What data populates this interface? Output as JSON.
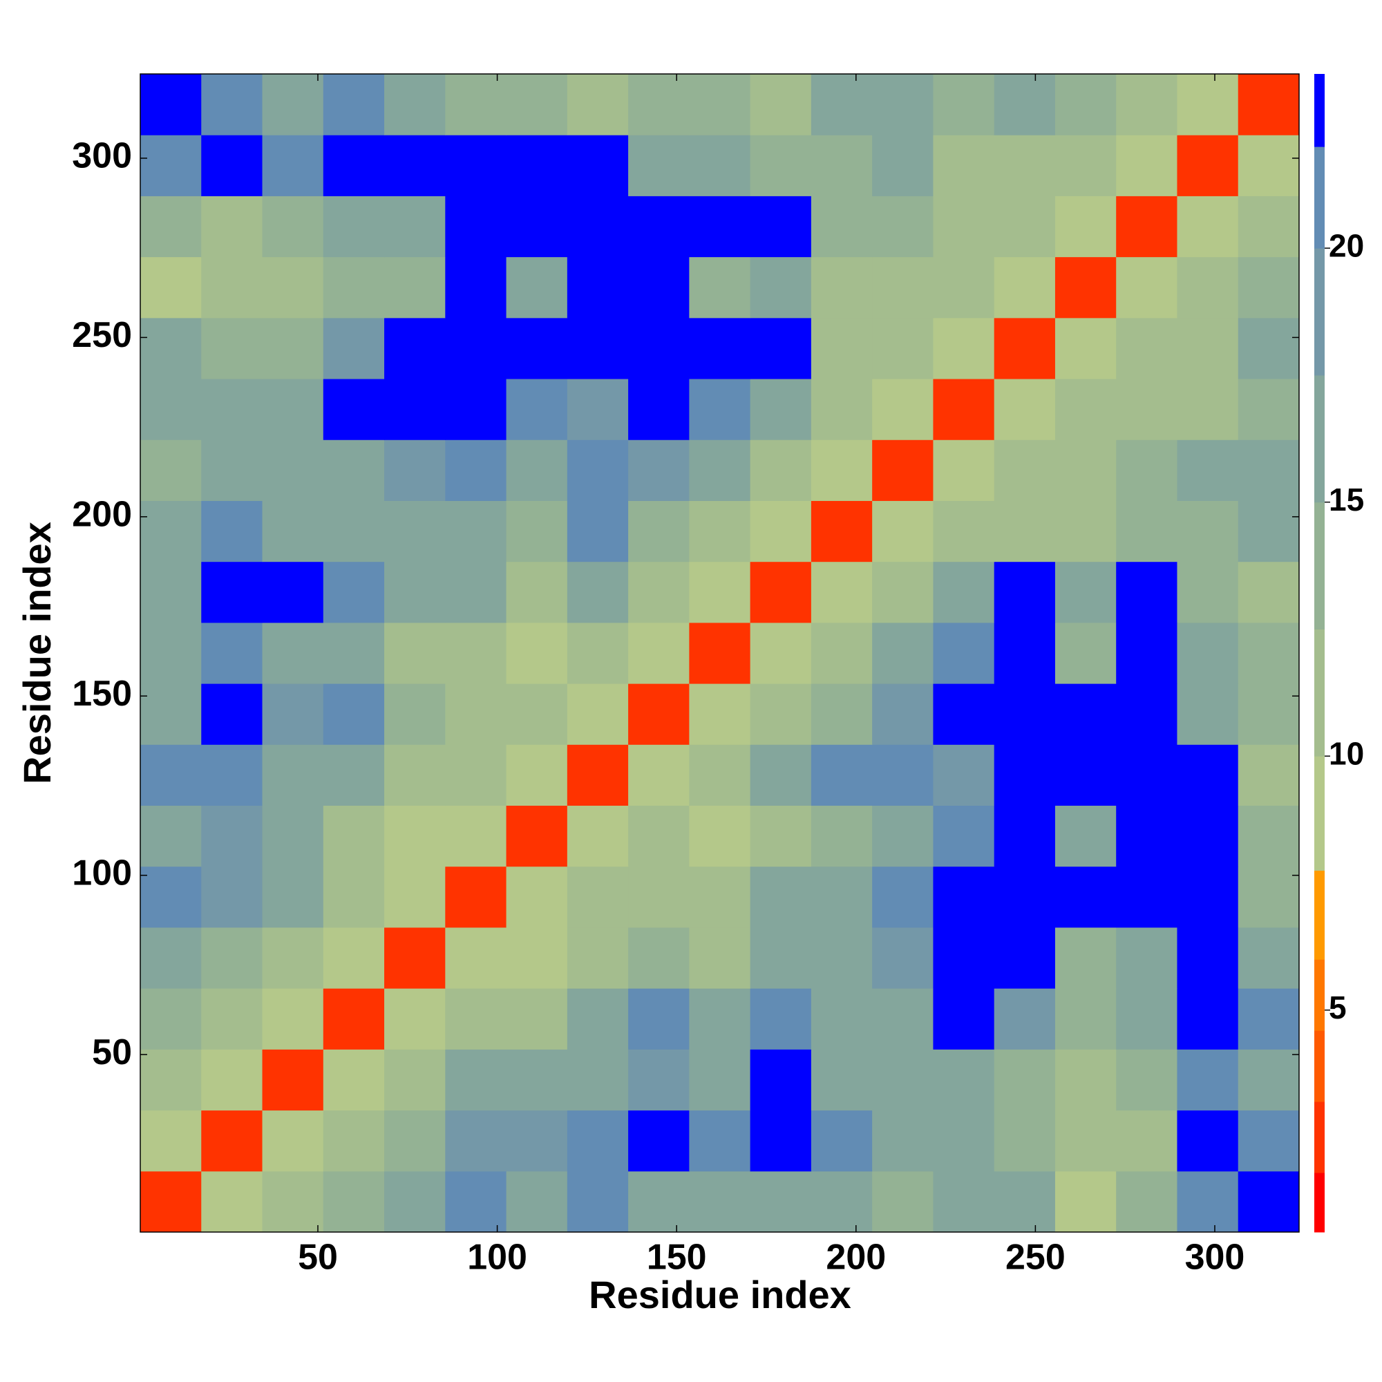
{
  "chart_data": {
    "type": "heatmap",
    "x_label": "Residue index",
    "y_label": "Residue index",
    "xlim": [
      0.5,
      323.5
    ],
    "ylim": [
      0.5,
      323.5
    ],
    "xticks": [
      50,
      100,
      150,
      200,
      250,
      300
    ],
    "yticks": [
      50,
      100,
      150,
      200,
      250,
      300
    ],
    "x_bins": [
      0.5,
      17.5,
      34.5,
      51.5,
      68.5,
      85.5,
      102.5,
      119.5,
      136.5,
      153.5,
      170.5,
      187.5,
      204.5,
      221.5,
      238.5,
      255.5,
      272.5,
      289.5,
      306.5,
      323.5
    ],
    "y_bins": [
      0.5,
      17.5,
      34.5,
      51.5,
      68.5,
      85.5,
      102.5,
      119.5,
      136.5,
      153.5,
      170.5,
      187.5,
      204.5,
      221.5,
      238.5,
      255.5,
      272.5,
      289.5,
      306.5,
      323.5
    ],
    "z": [
      [
        3,
        9,
        12,
        14,
        15,
        21,
        15,
        20,
        16,
        15,
        16,
        17,
        14,
        15,
        17,
        8,
        13,
        21,
        23
      ],
      [
        9,
        3,
        9,
        12,
        14,
        19,
        19,
        21,
        22,
        21,
        22,
        21,
        15,
        17,
        13,
        10,
        12,
        22,
        20
      ],
      [
        12,
        9,
        3,
        8,
        11,
        15,
        15,
        17,
        19,
        16,
        22,
        16,
        15,
        16,
        14,
        12,
        13,
        21,
        17
      ],
      [
        14,
        12,
        8,
        3,
        8,
        12,
        11,
        15,
        20,
        16,
        21,
        17,
        17,
        22,
        18,
        14,
        15,
        22,
        20
      ],
      [
        15,
        14,
        11,
        8,
        3,
        8,
        9,
        12,
        14,
        12,
        17,
        16,
        18,
        22,
        22,
        14,
        15,
        22,
        16
      ],
      [
        21,
        19,
        15,
        12,
        8,
        3,
        8,
        10,
        11,
        10,
        16,
        17,
        21,
        22,
        22,
        22,
        22,
        22,
        14
      ],
      [
        15,
        19,
        15,
        11,
        9,
        8,
        3,
        8,
        10,
        8,
        12,
        13,
        15,
        21,
        22,
        15,
        22,
        22,
        14
      ],
      [
        20,
        21,
        17,
        15,
        12,
        10,
        8,
        3,
        8,
        11,
        15,
        21,
        20,
        19,
        22,
        22,
        22,
        22,
        12
      ],
      [
        16,
        22,
        19,
        20,
        14,
        11,
        10,
        8,
        3,
        8,
        10,
        14,
        19,
        22,
        22,
        22,
        22,
        17,
        13
      ],
      [
        15,
        21,
        16,
        16,
        12,
        10,
        8,
        11,
        8,
        3,
        8,
        10,
        15,
        21,
        22,
        14,
        22,
        17,
        13
      ],
      [
        16,
        22,
        22,
        21,
        17,
        16,
        12,
        15,
        10,
        8,
        3,
        8,
        12,
        16,
        22,
        17,
        22,
        14,
        12
      ],
      [
        17,
        21,
        16,
        17,
        16,
        17,
        13,
        21,
        14,
        10,
        8,
        3,
        8,
        11,
        12,
        11,
        14,
        13,
        15
      ],
      [
        14,
        15,
        15,
        17,
        18,
        21,
        15,
        20,
        19,
        15,
        12,
        8,
        3,
        8,
        11,
        10,
        14,
        16,
        17
      ],
      [
        15,
        17,
        16,
        22,
        22,
        22,
        21,
        19,
        22,
        21,
        16,
        11,
        8,
        3,
        8,
        10,
        12,
        10,
        14
      ],
      [
        17,
        13,
        14,
        18,
        22,
        22,
        22,
        22,
        22,
        22,
        22,
        12,
        11,
        8,
        3,
        8,
        10,
        11,
        15
      ],
      [
        8,
        10,
        12,
        14,
        14,
        22,
        15,
        22,
        22,
        14,
        17,
        11,
        10,
        10,
        8,
        3,
        8,
        10,
        13
      ],
      [
        13,
        12,
        13,
        15,
        15,
        22,
        22,
        22,
        22,
        22,
        22,
        14,
        14,
        12,
        10,
        8,
        3,
        8,
        11
      ],
      [
        21,
        22,
        21,
        22,
        22,
        22,
        22,
        22,
        17,
        17,
        14,
        13,
        16,
        10,
        11,
        10,
        8,
        3,
        8
      ],
      [
        23,
        20,
        17,
        20,
        16,
        14,
        14,
        12,
        13,
        13,
        12,
        15,
        17,
        14,
        15,
        13,
        11,
        8,
        3
      ]
    ],
    "zlim": [
      0.63,
      23.43
    ],
    "zticks": [
      5,
      10,
      15,
      20
    ],
    "levels": [
      0.63,
      1.8,
      3.2,
      4.6,
      6.0,
      7.75,
      10,
      12.5,
      15,
      17.5,
      20,
      22,
      23.43
    ],
    "level_colors": [
      "#ff0000",
      "#ff3300",
      "#ff5a00",
      "#ff7800",
      "#ff9a00",
      "#b4c88a",
      "#a4bd8e",
      "#94b294",
      "#84a69c",
      "#7498a8",
      "#628cb4",
      "#0000ff"
    ]
  }
}
